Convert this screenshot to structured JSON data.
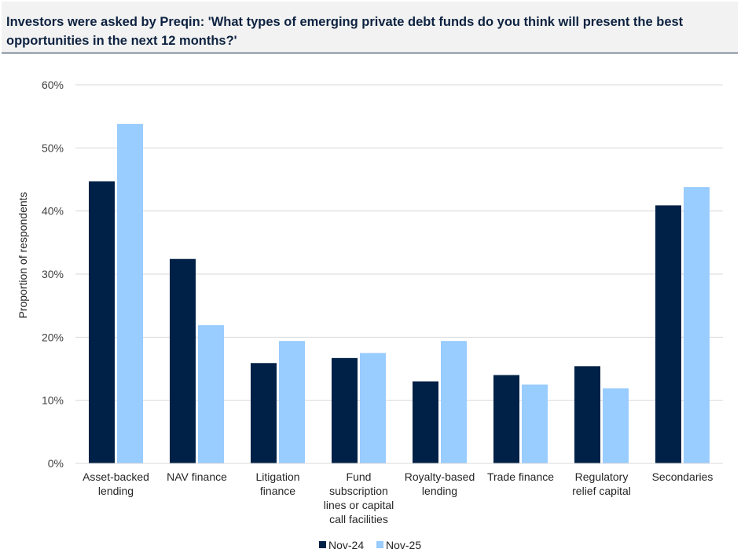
{
  "header": {
    "title": "Investors were asked by Preqin: 'What types of emerging private debt funds do you think will present the best opportunities in the next 12 months?'"
  },
  "colors": {
    "series_1": "#002147",
    "series_2": "#99ccff",
    "grid": "#d9d9d9",
    "title_rule": "#0d2240"
  },
  "chart_data": {
    "type": "bar",
    "title": "Investors were asked by Preqin: 'What types of emerging private debt funds do you think will present the best opportunities in the next 12 months?'",
    "xlabel": "",
    "ylabel": "Proportion of respondents",
    "ylim": [
      0,
      60
    ],
    "yticks": [
      0,
      10,
      20,
      30,
      40,
      50,
      60
    ],
    "ytick_labels": [
      "0%",
      "10%",
      "20%",
      "30%",
      "40%",
      "50%",
      "60%"
    ],
    "grid": true,
    "legend_position": "bottom-center",
    "categories": [
      [
        "Asset-backed",
        "lending"
      ],
      [
        "NAV finance"
      ],
      [
        "Litigation",
        "finance"
      ],
      [
        "Fund",
        "subscription",
        "lines or capital",
        "call facilities"
      ],
      [
        "Royalty-based",
        "lending"
      ],
      [
        "Trade finance"
      ],
      [
        "Regulatory",
        "relief capital"
      ],
      [
        "Secondaries"
      ]
    ],
    "series": [
      {
        "name": "Nov-24",
        "values": [
          44.7,
          32.4,
          15.9,
          16.7,
          13.0,
          14.0,
          15.4,
          40.9
        ]
      },
      {
        "name": "Nov-25",
        "values": [
          53.8,
          21.9,
          19.4,
          17.5,
          19.4,
          12.5,
          11.9,
          43.8
        ]
      }
    ]
  }
}
